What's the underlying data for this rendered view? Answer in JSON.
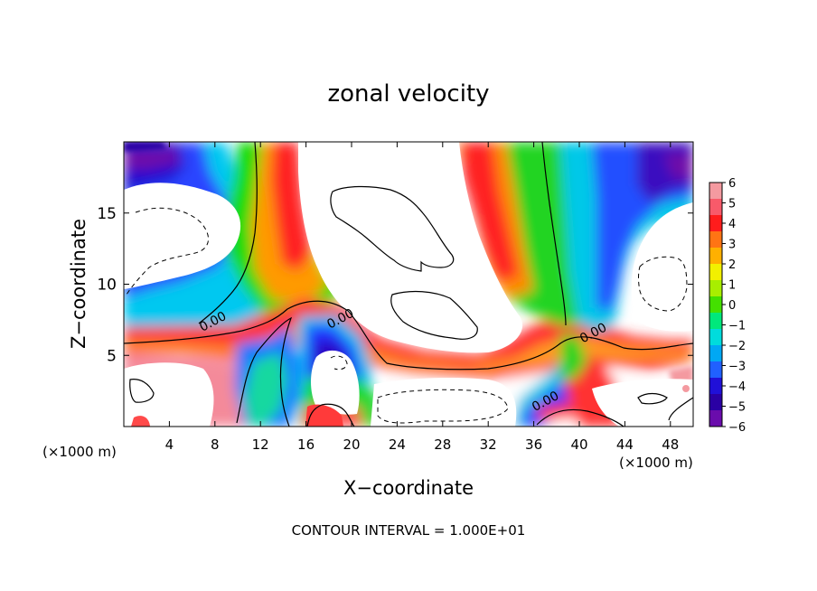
{
  "chart_data": {
    "type": "heatmap",
    "title": "zonal velocity",
    "xlabel": "X−coordinate",
    "ylabel": "Z−coordinate",
    "x_unit_left": "(×1000 m)",
    "x_unit_right": "(×1000 m)",
    "footer": "CONTOUR INTERVAL = 1.000E+01",
    "xlim": [
      0,
      50
    ],
    "ylim": [
      0,
      20
    ],
    "x_ticks": [
      4,
      8,
      12,
      16,
      20,
      24,
      28,
      32,
      36,
      40,
      44,
      48
    ],
    "y_ticks": [
      5,
      10,
      15
    ],
    "contour_labels": [
      {
        "text": "0.00",
        "x": 7.8,
        "y": 7.4
      },
      {
        "text": "0.00",
        "x": 19.0,
        "y": 7.6
      },
      {
        "text": "0.00",
        "x": 41.2,
        "y": 6.6
      },
      {
        "text": "0.00",
        "x": 37.0,
        "y": 1.8
      }
    ],
    "colorbar": {
      "min": -6,
      "max": 6,
      "labels": [
        "6",
        "5",
        "4",
        "3",
        "2",
        "1",
        "0",
        "−1",
        "−2",
        "−3",
        "−4",
        "−5",
        "−6"
      ],
      "colors": [
        "#f49aa0",
        "#f85a6a",
        "#ff1c1c",
        "#ff7414",
        "#ffb000",
        "#f2f000",
        "#a8ee00",
        "#44e000",
        "#00e87c",
        "#00dcdc",
        "#00a8f4",
        "#2060ff",
        "#2010d8",
        "#2a00a4",
        "#6a0cac"
      ]
    }
  }
}
